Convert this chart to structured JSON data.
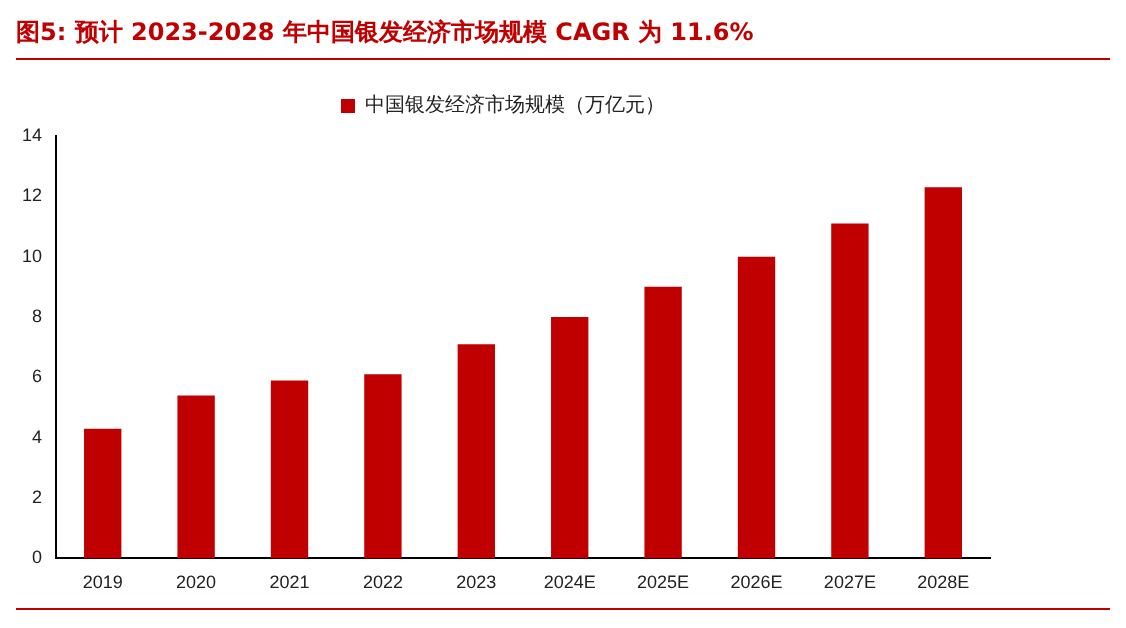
{
  "chart_data": {
    "type": "bar",
    "title": "图5:  预计 2023-2028 年中国银发经济市场规模 CAGR 为 11.6%",
    "categories": [
      "2019",
      "2020",
      "2021",
      "2022",
      "2023",
      "2024E",
      "2025E",
      "2026E",
      "2027E",
      "2028E"
    ],
    "series": [
      {
        "name": "中国银发经济市场规模（万亿元）",
        "color": "#c00000",
        "values": [
          4.3,
          5.4,
          5.9,
          6.1,
          7.1,
          8.0,
          9.0,
          10.0,
          11.1,
          12.3
        ]
      }
    ],
    "ylim": [
      0,
      14
    ],
    "yticks": [
      0,
      2,
      4,
      6,
      8,
      10,
      12,
      14
    ],
    "grid": false,
    "legend": "top"
  }
}
